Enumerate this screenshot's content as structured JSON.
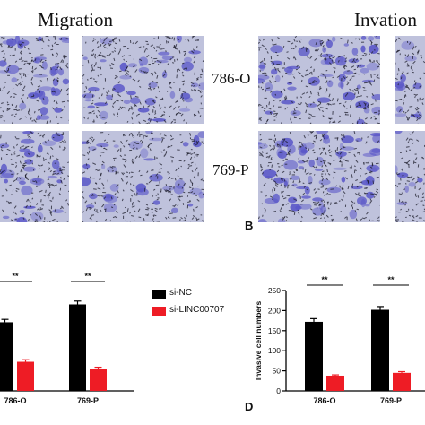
{
  "figure": {
    "headers": {
      "migration": "Migration",
      "invasion": "Invation"
    },
    "cell_lines": [
      "786-O",
      "769-P"
    ],
    "panel_labels": {
      "b": "B",
      "d": "D"
    },
    "colors": {
      "si_nc": "#000000",
      "si_linc": "#ee1c25",
      "stain": "#5a57c8",
      "background": "#bfc2dc"
    }
  },
  "legend": [
    {
      "name": "si-NC",
      "color": "#000000"
    },
    {
      "name": "si-LINC00707",
      "color": "#ee1c25"
    }
  ],
  "chart_data": [
    {
      "type": "bar",
      "categories": [
        "786-O",
        "769-P"
      ],
      "series": [
        {
          "name": "si-NC",
          "values": [
            165,
            208
          ],
          "errors": [
            7,
            8
          ]
        },
        {
          "name": "si-LINC00707",
          "values": [
            70,
            53
          ],
          "errors": [
            5,
            4
          ]
        }
      ],
      "significance": [
        "**",
        "**"
      ],
      "ylabel": "",
      "ylim": [
        0,
        250
      ]
    },
    {
      "type": "bar",
      "categories": [
        "786-O",
        "769-P"
      ],
      "series": [
        {
          "name": "si-NC",
          "values": [
            172,
            202
          ],
          "errors": [
            8,
            8
          ]
        },
        {
          "name": "si-LINC00707",
          "values": [
            38,
            45
          ],
          "errors": [
            2,
            3
          ]
        }
      ],
      "significance": [
        "**",
        "**"
      ],
      "ylabel": "Invasive cell numbers",
      "yticks": [
        0,
        50,
        100,
        150,
        200,
        250
      ],
      "ylim": [
        0,
        250
      ]
    }
  ]
}
